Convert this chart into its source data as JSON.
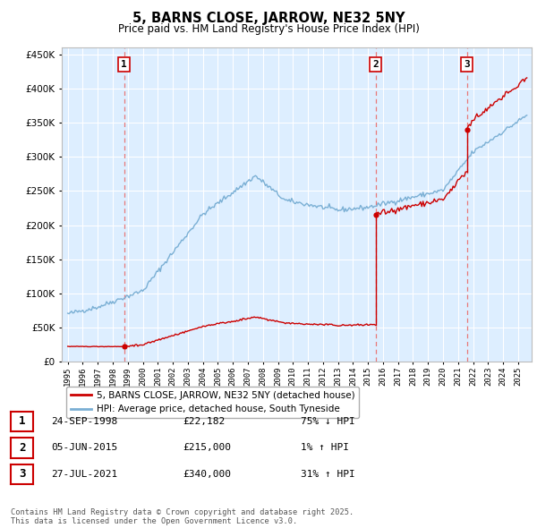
{
  "title": "5, BARNS CLOSE, JARROW, NE32 5NY",
  "subtitle": "Price paid vs. HM Land Registry's House Price Index (HPI)",
  "sale_prices": [
    22182,
    215000,
    340000
  ],
  "sale_labels": [
    "1",
    "2",
    "3"
  ],
  "hpi_color": "#7aafd4",
  "price_color": "#cc0000",
  "dashed_color": "#e87878",
  "bg_color": "#ddeeff",
  "grid_color": "#ffffff",
  "legend_label_price": "5, BARNS CLOSE, JARROW, NE32 5NY (detached house)",
  "legend_label_hpi": "HPI: Average price, detached house, South Tyneside",
  "table_data": [
    [
      "1",
      "24-SEP-1998",
      "£22,182",
      "75% ↓ HPI"
    ],
    [
      "2",
      "05-JUN-2015",
      "£215,000",
      "1% ↑ HPI"
    ],
    [
      "3",
      "27-JUL-2021",
      "£340,000",
      "31% ↑ HPI"
    ]
  ],
  "footer": "Contains HM Land Registry data © Crown copyright and database right 2025.\nThis data is licensed under the Open Government Licence v3.0.",
  "ylim": [
    0,
    460000
  ],
  "yticks": [
    0,
    50000,
    100000,
    150000,
    200000,
    250000,
    300000,
    350000,
    400000,
    450000
  ]
}
